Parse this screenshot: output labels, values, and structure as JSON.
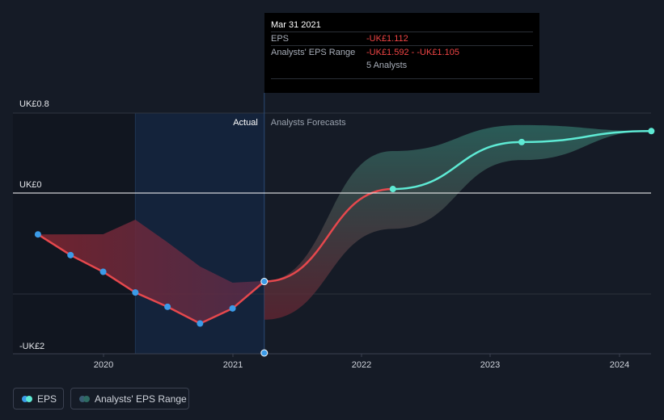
{
  "tooltip": {
    "date": "Mar 31 2021",
    "eps_label": "EPS",
    "eps_value": "-UK£1.112",
    "range_label": "Analysts' EPS Range",
    "range_low": "-UK£1.592",
    "range_sep": " - ",
    "range_high": "-UK£1.105",
    "analysts": "5 Analysts"
  },
  "legend": {
    "eps_label": "EPS",
    "range_label": "Analysts' EPS Range"
  },
  "colors": {
    "background": "#151b26",
    "actual_line": "#e5484d",
    "forecast_line": "#5eead4",
    "point_actual": "#3b9be8",
    "range_fill": "#2e6b63"
  },
  "chart_data": {
    "type": "line",
    "title": "",
    "y_tick_labels": [
      "UK£0.8",
      "UK£0",
      "-UK£2"
    ],
    "x_tick_labels": [
      "2020",
      "2021",
      "2022",
      "2023",
      "2024"
    ],
    "section_labels": {
      "actual": "Actual",
      "forecast": "Analysts Forecasts"
    },
    "present_date": "2021-03-31",
    "series": [
      {
        "name": "EPS",
        "points": [
          {
            "x": "2019-06-30",
            "y": -0.52
          },
          {
            "x": "2019-09-30",
            "y": -0.78
          },
          {
            "x": "2019-12-31",
            "y": -0.99
          },
          {
            "x": "2020-03-31",
            "y": -1.25
          },
          {
            "x": "2020-06-30",
            "y": -1.43
          },
          {
            "x": "2020-09-30",
            "y": -1.64
          },
          {
            "x": "2020-12-31",
            "y": -1.45
          },
          {
            "x": "2021-03-31",
            "y": -1.112
          },
          {
            "x": "2022-03-31",
            "y": 0.04
          },
          {
            "x": "2023-03-31",
            "y": 0.51
          },
          {
            "x": "2024-03-31",
            "y": 0.62
          }
        ]
      },
      {
        "name": "Analysts' EPS Range",
        "points": [
          {
            "x": "2021-03-31",
            "low": -1.592,
            "high": -1.105
          },
          {
            "x": "2022-03-31",
            "low": -0.45,
            "high": 0.42
          },
          {
            "x": "2023-03-31",
            "low": 0.33,
            "high": 0.68
          },
          {
            "x": "2024-03-31",
            "low": 0.62,
            "high": 0.62
          }
        ]
      }
    ],
    "ylim": [
      -2.0,
      0.8
    ],
    "grid": true,
    "legend_position": "bottom-left"
  }
}
